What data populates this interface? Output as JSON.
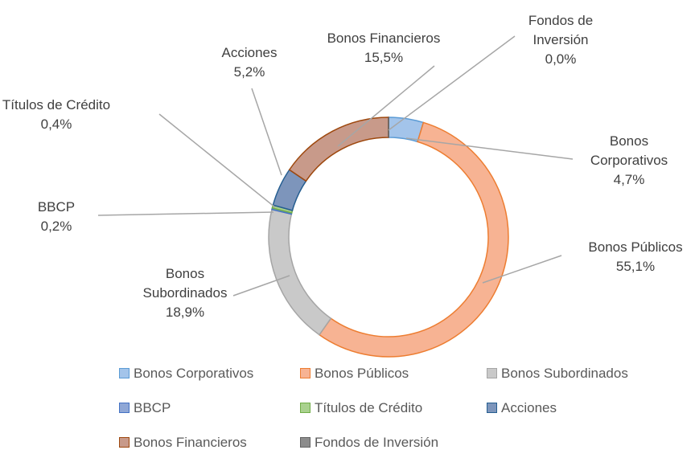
{
  "chart_data": {
    "type": "donut",
    "categories": [
      "Bonos Corporativos",
      "Bonos Públicos",
      "Bonos Subordinados",
      "BBCP",
      "Títulos de Crédito",
      "Acciones",
      "Bonos Financieros",
      "Fondos de Inversión"
    ],
    "values": [
      4.7,
      55.1,
      18.9,
      0.2,
      0.4,
      5.2,
      15.5,
      0.0
    ],
    "value_labels": [
      "4,7%",
      "55,1%",
      "18,9%",
      "0,2%",
      "0,4%",
      "5,2%",
      "15,5%",
      "0,0%"
    ],
    "colors": [
      "#a3c4ea",
      "#f7b393",
      "#c9c9c9",
      "#8fa7d6",
      "#a9d18e",
      "#7d95bb",
      "#c89a8a",
      "#8c8c8c"
    ],
    "border_colors": [
      "#5b9bd5",
      "#ed7d31",
      "#a5a5a5",
      "#4472c4",
      "#70ad47",
      "#255e91",
      "#9e480e",
      "#636363"
    ],
    "legend": "bottom"
  }
}
